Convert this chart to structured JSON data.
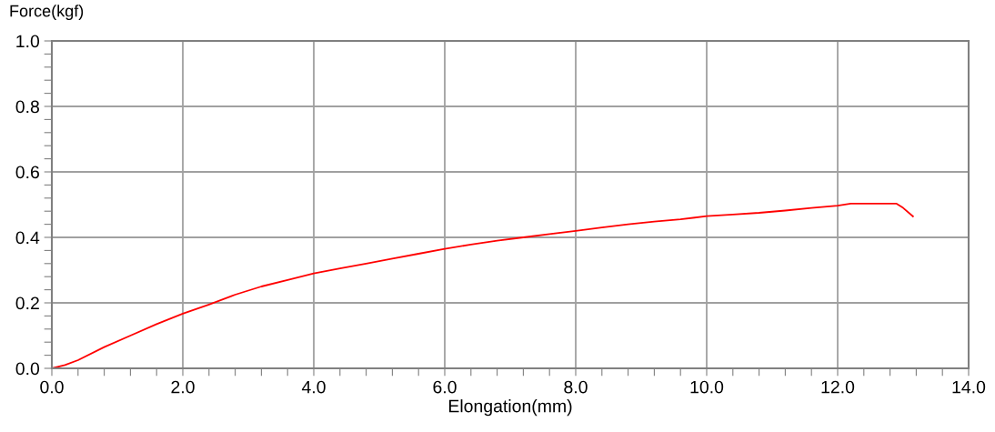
{
  "chart_data": {
    "type": "line",
    "ylabel": "Force(kgf)",
    "xlabel": "Elongation(mm)",
    "series": [
      {
        "color": "#ff0000",
        "x": [
          0,
          0.2,
          0.4,
          0.8,
          1.2,
          1.6,
          2.0,
          2.4,
          2.8,
          3.2,
          3.6,
          4.0,
          4.4,
          4.8,
          5.2,
          5.6,
          6.0,
          6.4,
          6.8,
          7.2,
          7.6,
          8.0,
          8.4,
          8.8,
          9.2,
          9.6,
          10.0,
          10.4,
          10.8,
          11.2,
          11.6,
          12.0,
          12.2,
          12.9,
          13.0,
          13.15
        ],
        "values": [
          0,
          0.01,
          0.025,
          0.065,
          0.1,
          0.135,
          0.167,
          0.195,
          0.225,
          0.25,
          0.27,
          0.29,
          0.305,
          0.32,
          0.335,
          0.35,
          0.365,
          0.378,
          0.39,
          0.4,
          0.41,
          0.42,
          0.43,
          0.44,
          0.448,
          0.455,
          0.465,
          0.47,
          0.475,
          0.482,
          0.49,
          0.497,
          0.503,
          0.503,
          0.49,
          0.464
        ]
      }
    ],
    "xlim": [
      0,
      14
    ],
    "ylim": [
      0,
      1
    ],
    "xticks": [
      {
        "value": 0,
        "label": "0.0"
      },
      {
        "value": 0.4,
        "label": null
      },
      {
        "value": 0.8,
        "label": null
      },
      {
        "value": 1.2,
        "label": null
      },
      {
        "value": 1.6,
        "label": null
      },
      {
        "value": 2,
        "label": "2.0"
      },
      {
        "value": 2.4,
        "label": null
      },
      {
        "value": 2.8,
        "label": null
      },
      {
        "value": 3.2,
        "label": null
      },
      {
        "value": 3.6,
        "label": null
      },
      {
        "value": 4,
        "label": "4.0"
      },
      {
        "value": 4.4,
        "label": null
      },
      {
        "value": 4.8,
        "label": null
      },
      {
        "value": 5.2,
        "label": null
      },
      {
        "value": 5.6,
        "label": null
      },
      {
        "value": 6,
        "label": "6.0"
      },
      {
        "value": 6.4,
        "label": null
      },
      {
        "value": 6.8,
        "label": null
      },
      {
        "value": 7.2,
        "label": null
      },
      {
        "value": 7.6,
        "label": null
      },
      {
        "value": 8,
        "label": "8.0"
      },
      {
        "value": 8.4,
        "label": null
      },
      {
        "value": 8.8,
        "label": null
      },
      {
        "value": 9.2,
        "label": null
      },
      {
        "value": 9.6,
        "label": null
      },
      {
        "value": 10,
        "label": "10.0"
      },
      {
        "value": 10.4,
        "label": null
      },
      {
        "value": 10.8,
        "label": null
      },
      {
        "value": 11.2,
        "label": null
      },
      {
        "value": 11.6,
        "label": null
      },
      {
        "value": 12,
        "label": "12.0"
      },
      {
        "value": 12.4,
        "label": null
      },
      {
        "value": 12.8,
        "label": null
      },
      {
        "value": 13.2,
        "label": null
      },
      {
        "value": 13.6,
        "label": null
      },
      {
        "value": 14,
        "label": "14.0"
      }
    ],
    "yticks": [
      {
        "value": 0,
        "label": "0.0"
      },
      {
        "value": 0.04,
        "label": null
      },
      {
        "value": 0.08,
        "label": null
      },
      {
        "value": 0.12,
        "label": null
      },
      {
        "value": 0.16,
        "label": null
      },
      {
        "value": 0.2,
        "label": "0.2"
      },
      {
        "value": 0.24,
        "label": null
      },
      {
        "value": 0.28,
        "label": null
      },
      {
        "value": 0.32,
        "label": null
      },
      {
        "value": 0.36,
        "label": null
      },
      {
        "value": 0.4,
        "label": "0.4"
      },
      {
        "value": 0.44,
        "label": null
      },
      {
        "value": 0.48,
        "label": null
      },
      {
        "value": 0.52,
        "label": null
      },
      {
        "value": 0.56,
        "label": null
      },
      {
        "value": 0.6,
        "label": "0.6"
      },
      {
        "value": 0.64,
        "label": null
      },
      {
        "value": 0.68,
        "label": null
      },
      {
        "value": 0.72,
        "label": null
      },
      {
        "value": 0.76,
        "label": null
      },
      {
        "value": 0.8,
        "label": "0.8"
      },
      {
        "value": 0.84,
        "label": null
      },
      {
        "value": 0.88,
        "label": null
      },
      {
        "value": 0.92,
        "label": null
      },
      {
        "value": 0.96,
        "label": null
      },
      {
        "value": 1,
        "label": "1.0"
      }
    ],
    "grid": true,
    "legend": false
  }
}
